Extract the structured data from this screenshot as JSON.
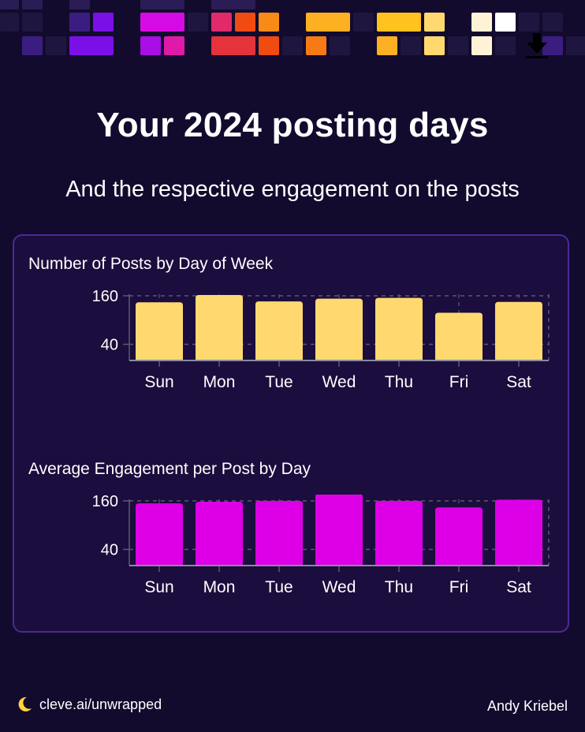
{
  "header": {
    "title": "Your 2024 posting days",
    "subtitle": "And the respective engagement on the posts"
  },
  "icons": {
    "download": "download-icon",
    "logo": "moon-logo-icon"
  },
  "colors": {
    "background": "#130b2e",
    "panel": "#1b0d3d",
    "panel_border": "#4a2a9a",
    "posts_bar": "#ffd970",
    "engagement_bar": "#dd00e6",
    "grid": "#5a5a6e"
  },
  "chart_data": [
    {
      "type": "bar",
      "title": "Number of Posts by Day of Week",
      "categories": [
        "Sun",
        "Mon",
        "Tue",
        "Wed",
        "Thu",
        "Fri",
        "Sat"
      ],
      "values": [
        144,
        162,
        146,
        153,
        155,
        118,
        145
      ],
      "yticks": [
        40,
        160
      ],
      "ylim": [
        0,
        180
      ],
      "color": "#ffd970",
      "grid": true
    },
    {
      "type": "bar",
      "title": "Average Engagement per Post by Day",
      "categories": [
        "Sun",
        "Mon",
        "Tue",
        "Wed",
        "Thu",
        "Fri",
        "Sat"
      ],
      "values": [
        154,
        158,
        160,
        178,
        160,
        144,
        163
      ],
      "yticks": [
        40,
        160
      ],
      "ylim": [
        0,
        180
      ],
      "color": "#dd00e6",
      "grid": true
    }
  ],
  "footer": {
    "link": "cleve.ai/unwrapped",
    "author": "Andy Kriebel"
  }
}
